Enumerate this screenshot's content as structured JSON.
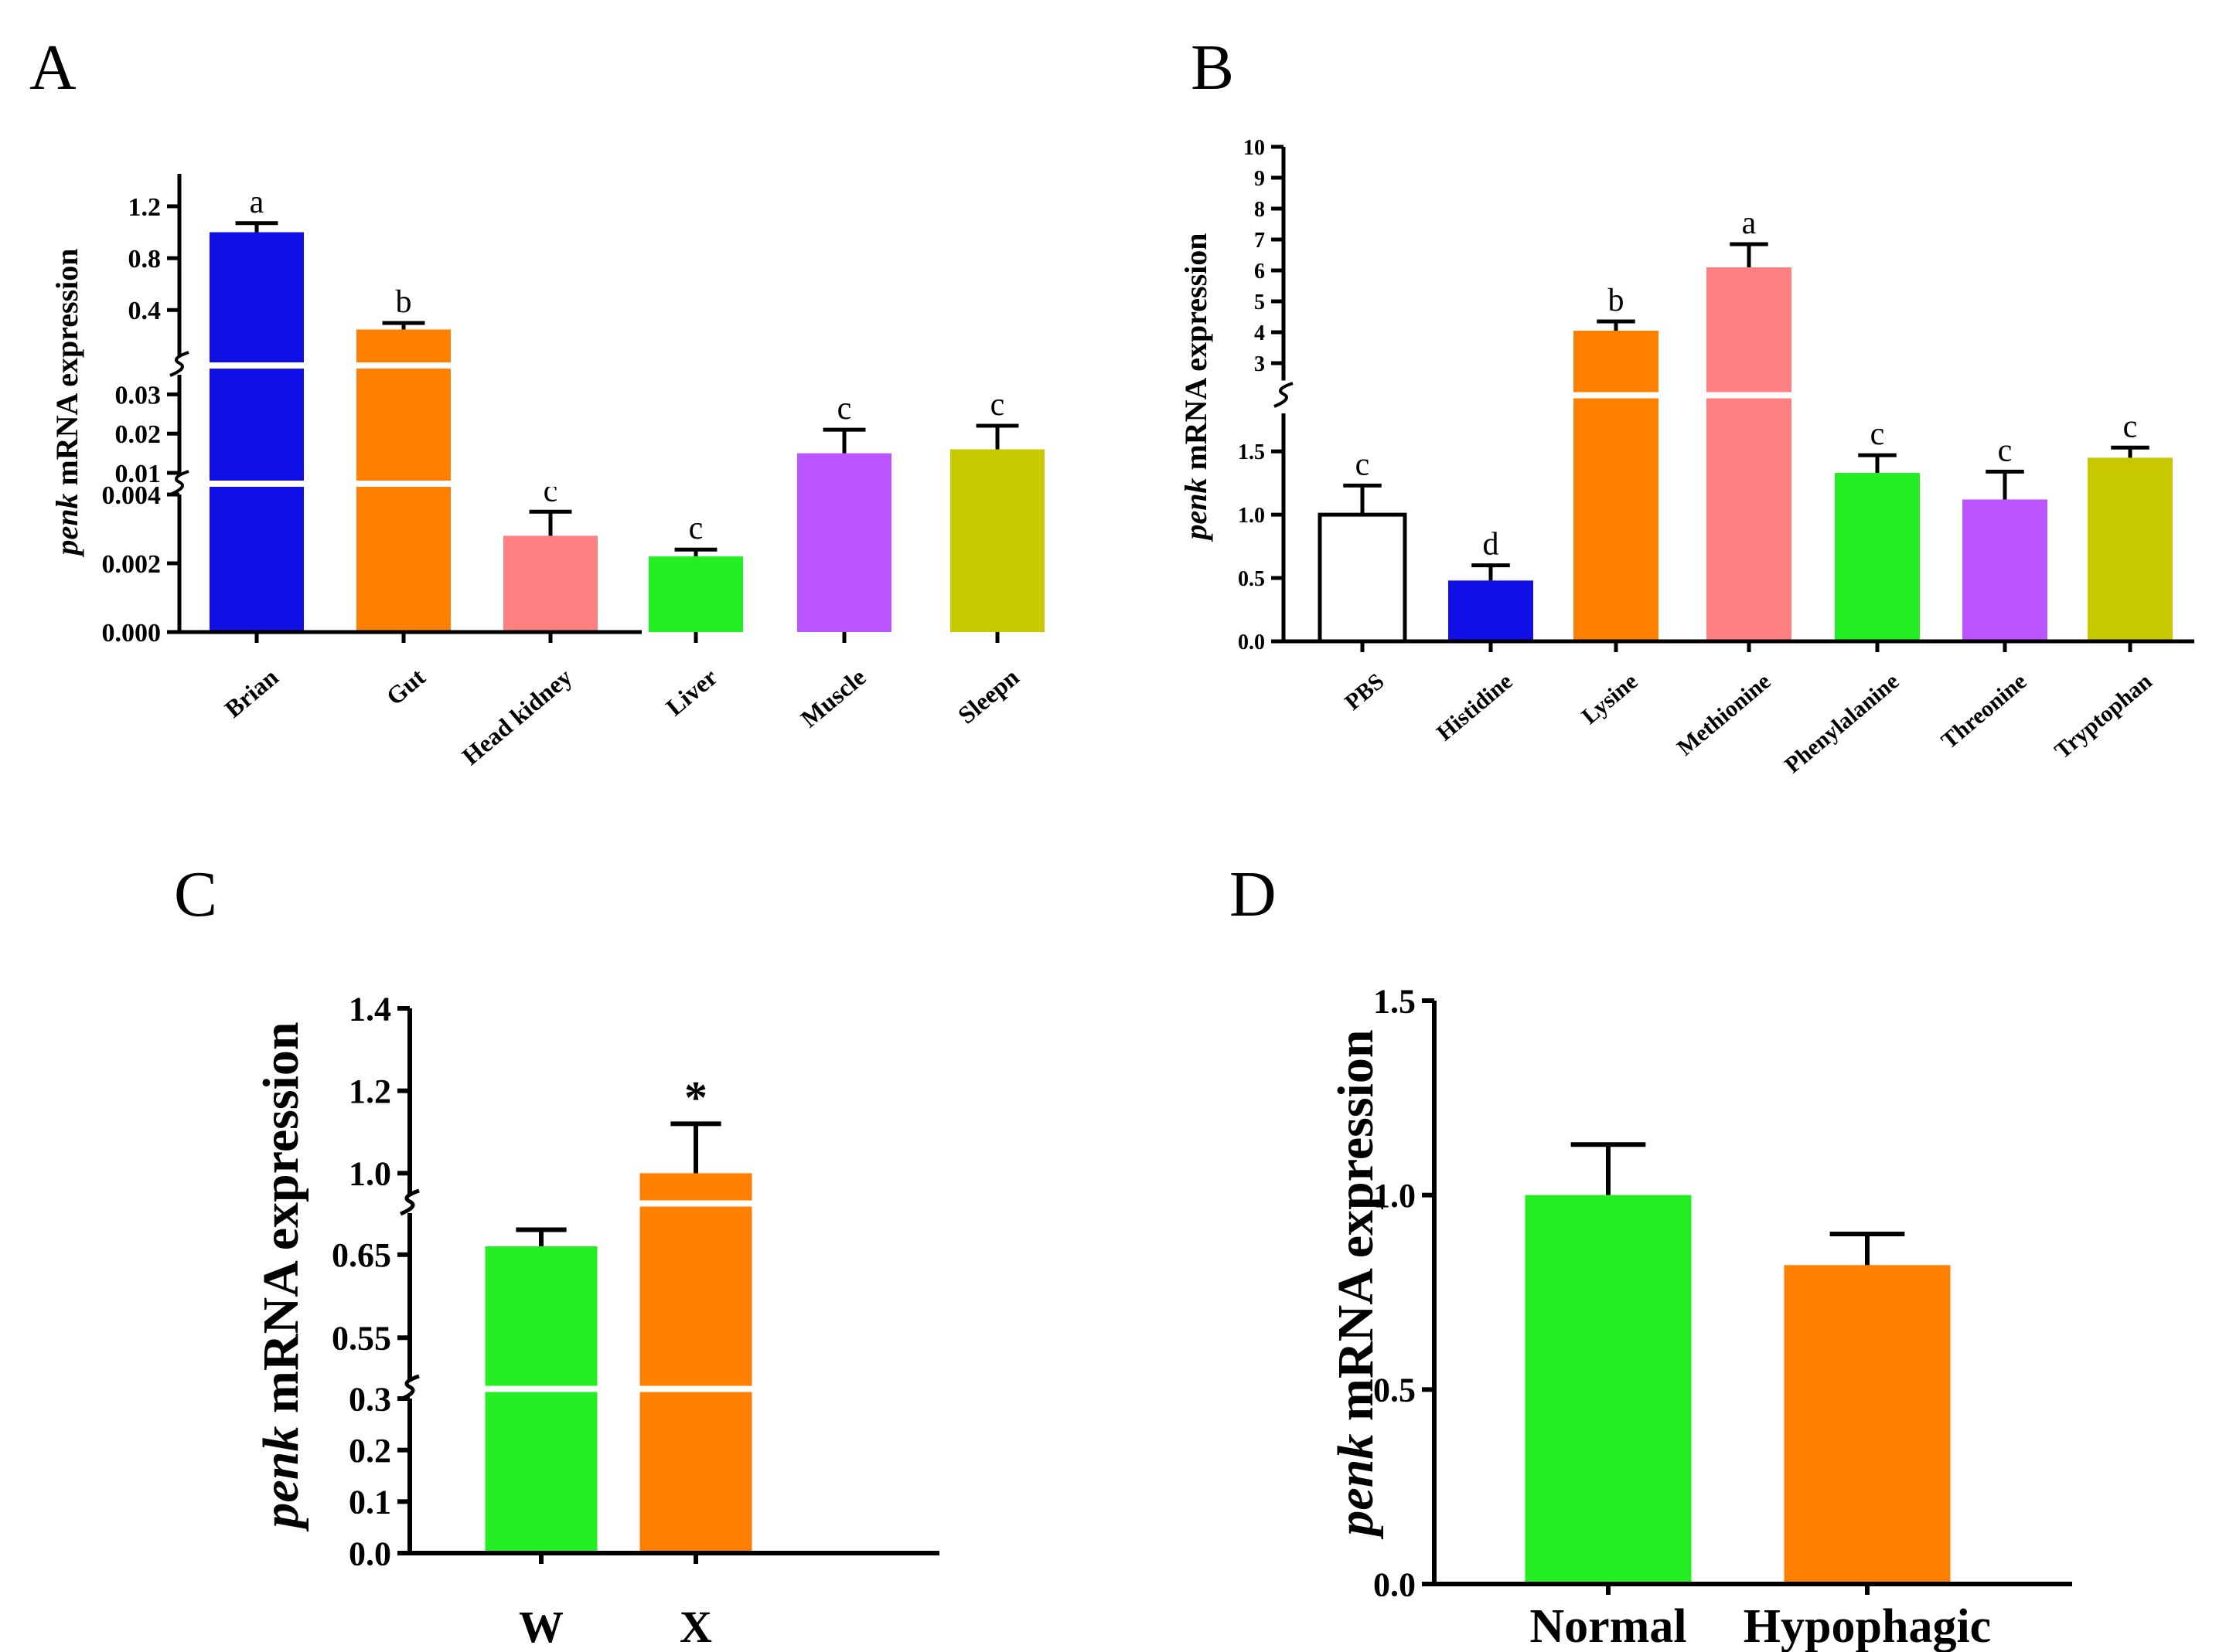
{
  "chart_data": [
    {
      "panel": "A",
      "type": "bar",
      "ylabel_italic": "penk",
      "ylabel_rest": " mRNA expression",
      "categories": [
        "Brian",
        "Gut",
        "Head kidney",
        "Liver",
        "Muscle",
        "Sleepn"
      ],
      "values": [
        1.0,
        0.25,
        0.0028,
        0.0022,
        0.015,
        0.016
      ],
      "errors": [
        0.07,
        0.05,
        0.0007,
        0.0002,
        0.006,
        0.006
      ],
      "significance": [
        "a",
        "b",
        "c",
        "c",
        "c",
        "c"
      ],
      "colors": [
        "#1010e6",
        "#ff7f00",
        "#ff8080",
        "#22ee22",
        "#bb55ff",
        "#c8c800"
      ],
      "broken_axis": [
        {
          "range": [
            0,
            0.004
          ],
          "ticks": [
            "0.000",
            "0.002",
            "0.004"
          ]
        },
        {
          "range": [
            0.01,
            0.035
          ],
          "ticks": [
            "0.01",
            "0.02",
            "0.03"
          ]
        },
        {
          "range": [
            0.05,
            1.45
          ],
          "ticks": [
            "0.4",
            "0.8",
            "1.2"
          ]
        }
      ]
    },
    {
      "panel": "B",
      "type": "bar",
      "ylabel_italic": "penk",
      "ylabel_rest": " mRNA expression",
      "categories": [
        "PBS",
        "Histidine",
        "Lysine",
        "Methionine",
        "Phenylalanine",
        "Threonine",
        "Tryptophan"
      ],
      "values": [
        1.0,
        0.48,
        4.05,
        6.1,
        1.33,
        1.12,
        1.45
      ],
      "errors": [
        0.23,
        0.12,
        0.3,
        0.75,
        0.14,
        0.22,
        0.08
      ],
      "significance": [
        "c",
        "d",
        "b",
        "a",
        "c",
        "c",
        "c"
      ],
      "colors": [
        "#ffffff",
        "#1010e6",
        "#ff7f00",
        "#ff8080",
        "#22ee22",
        "#bb55ff",
        "#c8c800"
      ],
      "broken_axis": [
        {
          "range": [
            0,
            1.8
          ],
          "ticks": [
            "0.0",
            "0.5",
            "1.0",
            "1.5"
          ]
        },
        {
          "range": [
            2.5,
            10
          ],
          "ticks": [
            "3",
            "4",
            "5",
            "6",
            "7",
            "8",
            "9",
            "10"
          ]
        }
      ]
    },
    {
      "panel": "C",
      "type": "bar",
      "ylabel_italic": "penk",
      "ylabel_rest": " mRNA expression",
      "categories": [
        "W",
        "X"
      ],
      "values": [
        0.66,
        1.0
      ],
      "errors": [
        0.02,
        0.12
      ],
      "significance": [
        "",
        "*"
      ],
      "colors": [
        "#22ee22",
        "#ff7f00"
      ],
      "broken_axis": [
        {
          "range": [
            0,
            0.3
          ],
          "ticks": [
            "0.0",
            "0.1",
            "0.2",
            "0.3"
          ]
        },
        {
          "range": [
            0.5,
            0.7
          ],
          "ticks": [
            "0.55",
            "0.65"
          ]
        },
        {
          "range": [
            0.95,
            1.4
          ],
          "ticks": [
            "1.0",
            "1.2",
            "1.4"
          ]
        }
      ]
    },
    {
      "panel": "D",
      "type": "bar",
      "ylabel_italic": "penk",
      "ylabel_rest": " mRNA expression",
      "categories": [
        "Normal",
        "Hypophagic"
      ],
      "values": [
        1.0,
        0.82
      ],
      "errors": [
        0.13,
        0.08
      ],
      "significance": [
        "",
        ""
      ],
      "colors": [
        "#22ee22",
        "#ff7f00"
      ],
      "ylim": [
        0,
        1.5
      ],
      "ticks": [
        "0.0",
        "0.5",
        "1.0",
        "1.5"
      ]
    }
  ]
}
